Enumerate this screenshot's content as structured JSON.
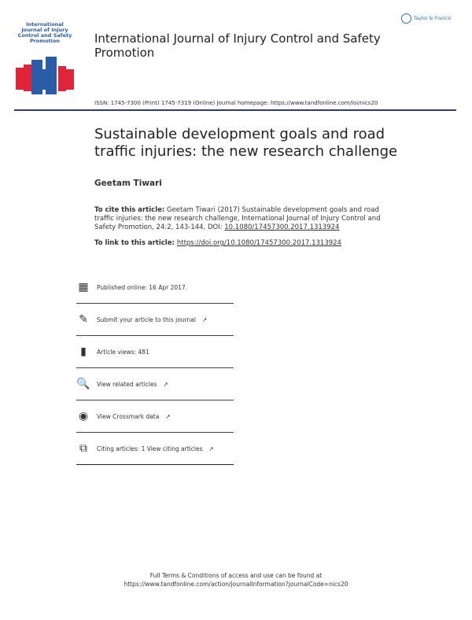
{
  "journal": {
    "title": "International Journal of Injury Control and Safety Promotion",
    "cover_title": "International Journal of Injury Control and Safety Promotion",
    "publisher_logo": "Taylor & Francis",
    "issn": "ISSN: 1745-7300 (Print) 1745-7319 (Online) Journal homepage: ",
    "homepage": "https://www.tandfonline.com/loi/nics20",
    "accent": "#2b3c7e"
  },
  "article": {
    "title": "Sustainable development goals and road traffic injuries: the new research challenge",
    "author": "Geetam Tiwari",
    "cite_label": "To cite this article:",
    "cite_text": " Geetam Tiwari (2017) Sustainable development goals and road traffic injuries: the new research challenge, International Journal of Injury Control and Safety Promotion, 24:2, 143-144, DOI: ",
    "doi": "10.1080/17457300.2017.1313924",
    "link_label": "To link to this article: ",
    "link": "https://doi.org/10.1080/17457300.2017.1313924"
  },
  "info": [
    {
      "icon": "calendar-icon",
      "glyph": "▦",
      "text": "Published online: 16 Apr 2017.",
      "ext": ""
    },
    {
      "icon": "edit-icon",
      "glyph": "✎",
      "text": "Submit your article to this journal",
      "ext": "↗"
    },
    {
      "icon": "bar-chart-icon",
      "glyph": "▮",
      "text": "Article views: 481",
      "ext": ""
    },
    {
      "icon": "search-document-icon",
      "glyph": "🔍",
      "text": "View related articles",
      "ext": "↗"
    },
    {
      "icon": "crossmark-icon",
      "glyph": "◉",
      "text": "View Crossmark data",
      "ext": "↗"
    },
    {
      "icon": "citing-icon",
      "glyph": "⧉",
      "text": "Citing articles: 1 View citing articles",
      "ext": "↗"
    }
  ],
  "footer": {
    "line1": "Full Terms & Conditions of access and use can be found at",
    "line2": "https://www.tandfonline.com/action/journalInformation?journalCode=nics20"
  }
}
